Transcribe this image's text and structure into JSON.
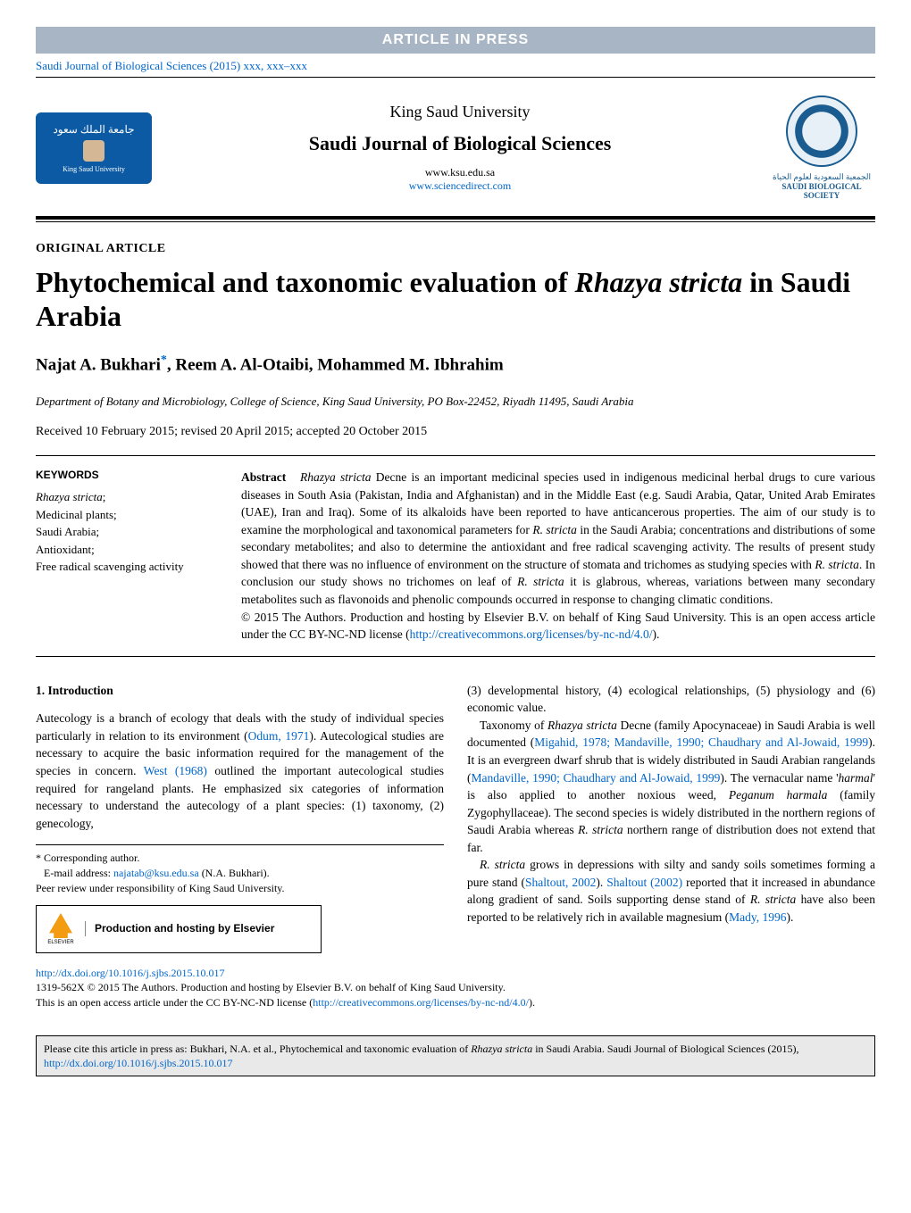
{
  "banner": "ARTICLE IN PRESS",
  "citation_top": "Saudi Journal of Biological Sciences (2015) xxx, xxx–xxx",
  "header": {
    "university": "King Saud University",
    "journal": "Saudi Journal of Biological Sciences",
    "url1": "www.ksu.edu.sa",
    "url2": "www.sciencedirect.com",
    "logo_left_ar": "جامعة الملك سعود",
    "logo_left_en": "King Saud University",
    "society_ar": "الجمعية السعودية لعلوم الحياة",
    "society_en": "SAUDI BIOLOGICAL SOCIETY"
  },
  "article_type": "ORIGINAL ARTICLE",
  "title_pre": "Phytochemical and taxonomic evaluation of ",
  "title_ital": "Rhazya stricta",
  "title_post": " in Saudi Arabia",
  "authors": {
    "a1": "Najat A. Bukhari",
    "ast": "*",
    "sep1": ", ",
    "a2": "Reem A. Al-Otaibi",
    "sep2": ", ",
    "a3": "Mohammed M. Ibhrahim"
  },
  "affiliation": "Department of Botany and Microbiology, College of Science, King Saud University, PO Box-22452, Riyadh 11495, Saudi Arabia",
  "dates": "Received 10 February 2015; revised 20 April 2015; accepted 20 October 2015",
  "keywords": {
    "head": "KEYWORDS",
    "k1": "Rhazya stricta",
    "k1s": ";",
    "k2": "Medicinal plants;",
    "k3": "Saudi Arabia;",
    "k4": "Antioxidant;",
    "k5": "Free radical scavenging activity"
  },
  "abstract": {
    "label": "Abstract",
    "t1": "Rhazya stricta",
    "t2": " Decne is an important medicinal species used in indigenous medicinal herbal drugs to cure various diseases in South Asia (Pakistan, India and Afghanistan) and in the Middle East (e.g. Saudi Arabia, Qatar, United Arab Emirates (UAE), Iran and Iraq). Some of its alkaloids have been reported to have anticancerous properties. The aim of our study is to examine the morphological and taxonomical parameters for ",
    "t3": "R. stricta",
    "t4": " in the Saudi Arabia; concentrations and distributions of some secondary metabolites; and also to determine the antioxidant and free radical scavenging activity. The results of present study showed that there was no influence of environment on the structure of stomata and trichomes as studying species with ",
    "t5": "R. stricta",
    "t6": ". In conclusion our study shows no trichomes on leaf of ",
    "t7": "R. stricta",
    "t8": " it is glabrous, whereas, variations between many secondary metabolites such as flavonoids and phenolic compounds occurred in response to changing climatic conditions.",
    "copy": "© 2015 The Authors. Production and hosting by Elsevier B.V. on behalf of King Saud University. This is an open access article under the CC BY-NC-ND license (",
    "cc_link": "http://creativecommons.org/licenses/by-nc-nd/4.0/",
    "copy_end": ")."
  },
  "body": {
    "sec1": "1. Introduction",
    "p1a": "Autecology is a branch of ecology that deals with the study of individual species particularly in relation to its environment (",
    "p1b": "Odum, 1971",
    "p1c": "). Autecological studies are necessary to acquire the basic information required for the management of the species in concern. ",
    "p1d": "West (1968)",
    "p1e": " outlined the important autecological studies required for rangeland plants. He emphasized six categories of information necessary to understand the autecology of a plant species: (1) taxonomy, (2) genecology,",
    "p2a": "(3) developmental history, (4) ecological relationships, (5) physiology and (6) economic value.",
    "p3a": "Taxonomy of ",
    "p3b": "Rhazya stricta",
    "p3c": " Decne (family Apocynaceae) in Saudi Arabia is well documented (",
    "p3d": "Migahid, 1978; Mandaville, 1990; Chaudhary and Al-Jowaid, 1999",
    "p3e": "). It is an evergreen dwarf shrub that is widely distributed in Saudi Arabian rangelands (",
    "p3f": "Mandaville, 1990; Chaudhary and Al-Jowaid, 1999",
    "p3g": "). The vernacular name '",
    "p3h": "harmal",
    "p3i": "' is also applied to another noxious weed, ",
    "p3j": "Peganum harmala",
    "p3k": " (family Zygophyllaceae). The second species is widely distributed in the northern regions of Saudi Arabia whereas ",
    "p3l": "R. stricta",
    "p3m": " northern range of distribution does not extend that far.",
    "p4a": "R. stricta",
    "p4b": " grows in depressions with silty and sandy soils sometimes forming a pure stand (",
    "p4c": "Shaltout, 2002",
    "p4d": "). ",
    "p4e": "Shaltout (2002)",
    "p4f": " reported that it increased in abundance along gradient of sand. Soils supporting dense stand of ",
    "p4g": "R. stricta",
    "p4h": " have also been reported to be relatively rich in available magnesium (",
    "p4i": "Mady, 1996",
    "p4j": ")."
  },
  "footnotes": {
    "corr": "* Corresponding author.",
    "email_lbl": "E-mail address: ",
    "email": "najatab@ksu.edu.sa",
    "email_post": " (N.A. Bukhari).",
    "peer": "Peer review under responsibility of King Saud University.",
    "els": "ELSEVIER",
    "hosting": "Production and hosting by Elsevier"
  },
  "doi": {
    "url": "http://dx.doi.org/10.1016/j.sjbs.2015.10.017",
    "line2a": "1319-562X © 2015 The Authors. Production and hosting by Elsevier B.V. on behalf of King Saud University.",
    "line3a": "This is an open access article under the CC BY-NC-ND license (",
    "line3b": "http://creativecommons.org/licenses/by-nc-nd/4.0/",
    "line3c": ")."
  },
  "citebox": {
    "t1": "Please cite this article in press as: Bukhari, N.A. et al., Phytochemical and taxonomic evaluation of ",
    "t2": "Rhazya stricta",
    "t3": " in Saudi Arabia. Saudi Journal of Biological Sciences (2015), ",
    "t4": "http://dx.doi.org/10.1016/j.sjbs.2015.10.017"
  }
}
